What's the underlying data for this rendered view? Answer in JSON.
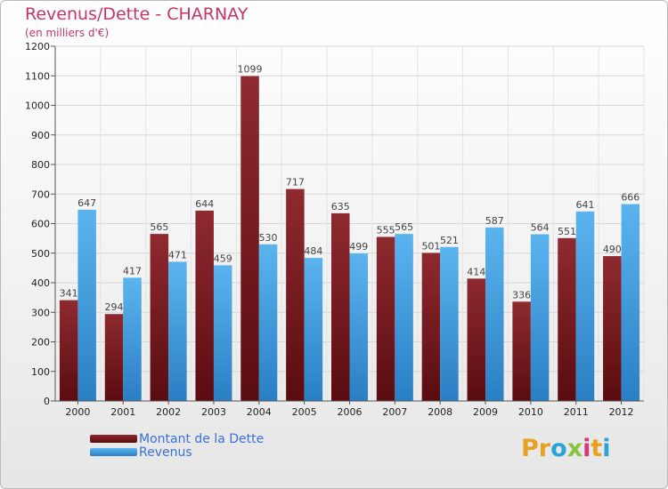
{
  "title": "Revenus/Dette - CHARNAY",
  "subtitle": "(en milliers d'€)",
  "logo": {
    "letters": [
      "P",
      "r",
      "o",
      "x",
      "i",
      "t",
      "i"
    ],
    "colors": [
      "#e8a020",
      "#e8a020",
      "#2aa3d8",
      "#8ac43f",
      "#d63a7a",
      "#e8a020",
      "#2aa3d8"
    ]
  },
  "colors": {
    "debt": "#8b1f24",
    "revenue": "#4aa3e6",
    "title": "#c8336a"
  },
  "chart_data": {
    "type": "bar",
    "title": "Revenus/Dette - CHARNAY",
    "ylabel": "(en milliers d'€)",
    "xlabel": "",
    "ylim": [
      0,
      1200
    ],
    "yticks": [
      0,
      100,
      200,
      300,
      400,
      500,
      600,
      700,
      800,
      900,
      1000,
      1100,
      1200
    ],
    "categories": [
      "2000",
      "2001",
      "2002",
      "2003",
      "2004",
      "2005",
      "2006",
      "2007",
      "2008",
      "2009",
      "2010",
      "2011",
      "2012"
    ],
    "series": [
      {
        "name": "Montant de la Dette",
        "values": [
          341,
          294,
          565,
          644,
          1099,
          717,
          635,
          555,
          501,
          414,
          336,
          551,
          490
        ]
      },
      {
        "name": "Revenus",
        "values": [
          647,
          417,
          471,
          459,
          530,
          484,
          499,
          565,
          521,
          587,
          564,
          641,
          666
        ]
      }
    ],
    "legend_position": "bottom-left"
  }
}
